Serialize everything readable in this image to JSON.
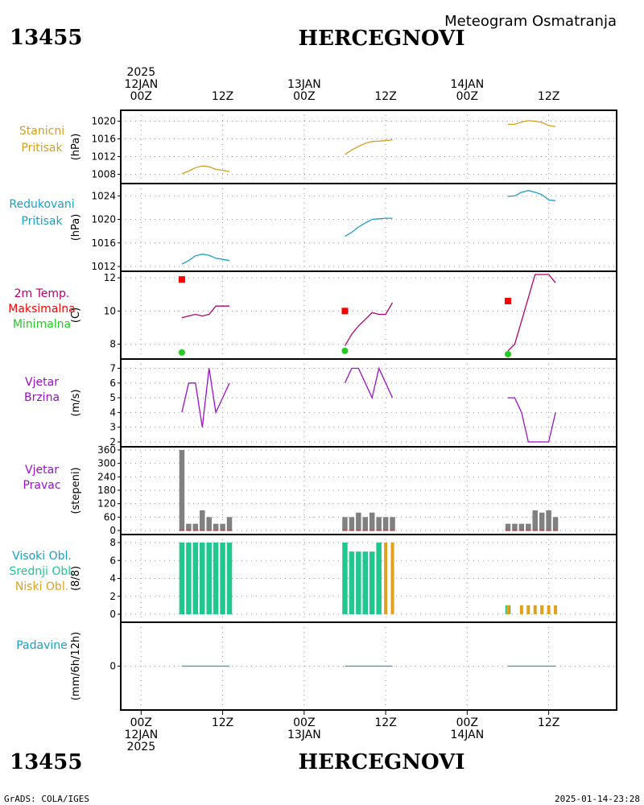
{
  "header": {
    "station_id": "13455",
    "station_name": "HERCEGNOVI",
    "subtitle": "Meteogram Osmatranja"
  },
  "footer": {
    "left": "GrADS: COLA/IGES",
    "right": "2025-01-14-23:28"
  },
  "time_axis": {
    "top_labels": [
      {
        "hour": 0,
        "lines": [
          "2025",
          "12JAN",
          "00Z"
        ]
      },
      {
        "hour": 12,
        "lines": [
          "12Z"
        ]
      },
      {
        "hour": 24,
        "lines": [
          "13JAN",
          "00Z"
        ]
      },
      {
        "hour": 36,
        "lines": [
          "12Z"
        ]
      },
      {
        "hour": 48,
        "lines": [
          "14JAN",
          "00Z"
        ]
      },
      {
        "hour": 60,
        "lines": [
          "12Z"
        ]
      }
    ],
    "bottom_labels": [
      {
        "hour": 0,
        "lines": [
          "00Z",
          "12JAN",
          "2025"
        ]
      },
      {
        "hour": 12,
        "lines": [
          "12Z"
        ]
      },
      {
        "hour": 24,
        "lines": [
          "00Z",
          "13JAN"
        ]
      },
      {
        "hour": 36,
        "lines": [
          "12Z"
        ]
      },
      {
        "hour": 48,
        "lines": [
          "00Z",
          "14JAN"
        ]
      },
      {
        "hour": 60,
        "lines": [
          "12Z"
        ]
      }
    ],
    "range_hours": [
      -3,
      70
    ]
  },
  "colors": {
    "station_pressure": "#d4a020",
    "reduced_pressure": "#1aa0c8",
    "temp_line": "#b4006e",
    "temp_max": "#ff0000",
    "temp_min": "#22cc22",
    "wind": "#9b10c8",
    "wind_dir": "#808080",
    "cloud_high": "#1aa0c8",
    "cloud_mid": "#20c890",
    "cloud_low": "#e0a020",
    "precip": "#1aa0c8"
  },
  "chart_data": [
    {
      "id": "station_pressure",
      "type": "line",
      "labels": [
        "Stanicni",
        "Pritisak"
      ],
      "ylabel": "(hPa)",
      "ylim": [
        1007,
        1021
      ],
      "yticks": [
        1008,
        1012,
        1016,
        1020
      ],
      "series": [
        {
          "x": [
            6,
            7,
            8,
            9,
            10,
            11,
            12,
            13
          ],
          "y": [
            1008.1,
            1008.7,
            1009.5,
            1009.9,
            1009.7,
            1009.1,
            1008.9,
            1008.6
          ]
        },
        {
          "x": [
            30,
            31,
            32,
            33,
            34,
            35,
            36,
            37
          ],
          "y": [
            1012.5,
            1013.5,
            1014.3,
            1015.0,
            1015.4,
            1015.5,
            1015.6,
            1015.8
          ]
        },
        {
          "x": [
            54,
            55,
            56,
            57,
            58,
            59,
            60,
            61
          ],
          "y": [
            1019.3,
            1019.3,
            1019.8,
            1020.1,
            1020.0,
            1019.7,
            1019.0,
            1018.8
          ]
        }
      ]
    },
    {
      "id": "reduced_pressure",
      "type": "line",
      "labels": [
        "Redukovani",
        "Pritisak"
      ],
      "ylabel": "(hPa)",
      "ylim": [
        1012,
        1025
      ],
      "yticks": [
        1012,
        1016,
        1020,
        1024
      ],
      "series": [
        {
          "x": [
            6,
            7,
            8,
            9,
            10,
            11,
            12,
            13
          ],
          "y": [
            1012.4,
            1013.0,
            1013.8,
            1014.1,
            1013.9,
            1013.4,
            1013.2,
            1013.0
          ]
        },
        {
          "x": [
            30,
            31,
            32,
            33,
            34,
            35,
            36,
            37
          ],
          "y": [
            1017.1,
            1017.8,
            1018.7,
            1019.4,
            1020.0,
            1020.1,
            1020.2,
            1020.2
          ]
        },
        {
          "x": [
            54,
            55,
            56,
            57,
            58,
            59,
            60,
            61
          ],
          "y": [
            1023.9,
            1024.0,
            1024.6,
            1024.9,
            1024.6,
            1024.2,
            1023.3,
            1023.2
          ]
        }
      ]
    },
    {
      "id": "temperature",
      "type": "line",
      "labels": [
        "2m Temp.",
        "Maksimalna",
        "Minimalna"
      ],
      "ylabel": "(C)",
      "ylim": [
        7.3,
        12.2
      ],
      "yticks": [
        8,
        10,
        12
      ],
      "series": [
        {
          "x": [
            6,
            7,
            8,
            9,
            10,
            11,
            12,
            13
          ],
          "y": [
            9.6,
            9.7,
            9.8,
            9.7,
            9.8,
            10.3,
            10.3,
            10.3
          ]
        },
        {
          "x": [
            30,
            31,
            32,
            33,
            34,
            35,
            36,
            37
          ],
          "y": [
            7.9,
            8.6,
            9.1,
            9.5,
            9.9,
            9.8,
            9.8,
            10.5
          ]
        },
        {
          "x": [
            54,
            55,
            56,
            57,
            58,
            59,
            60,
            61
          ],
          "y": [
            7.6,
            8.0,
            9.4,
            10.8,
            12.2,
            12.2,
            12.2,
            11.7
          ]
        }
      ],
      "max_markers": [
        {
          "x": 6,
          "y": 11.9
        },
        {
          "x": 30,
          "y": 10.0
        },
        {
          "x": 54,
          "y": 10.6
        }
      ],
      "min_markers": [
        {
          "x": 6,
          "y": 7.5
        },
        {
          "x": 30,
          "y": 7.6
        },
        {
          "x": 54,
          "y": 7.4
        }
      ]
    },
    {
      "id": "wind_speed",
      "type": "line",
      "labels": [
        "Vjetar",
        "Brzina"
      ],
      "ylabel": "(m/s)",
      "ylim": [
        2,
        7.3
      ],
      "yticks": [
        2,
        3,
        4,
        5,
        6,
        7
      ],
      "series": [
        {
          "x": [
            6,
            7,
            8,
            9,
            10,
            11,
            12,
            13
          ],
          "y": [
            4,
            6,
            6,
            3,
            7,
            4,
            5,
            6
          ]
        },
        {
          "x": [
            30,
            31,
            32,
            33,
            34,
            35,
            36,
            37
          ],
          "y": [
            6,
            7,
            7,
            6,
            5,
            7,
            6,
            5
          ]
        },
        {
          "x": [
            54,
            55,
            56,
            57,
            58,
            59,
            60,
            61
          ],
          "y": [
            5,
            5,
            4,
            2,
            2,
            2,
            2,
            4
          ]
        }
      ]
    },
    {
      "id": "wind_direction",
      "type": "bar",
      "labels": [
        "Vjetar",
        "Pravac"
      ],
      "ylabel": "(stepeni)",
      "ylim": [
        0,
        360
      ],
      "yticks": [
        0,
        60,
        120,
        180,
        240,
        300,
        360
      ],
      "x": [
        6,
        7,
        8,
        9,
        10,
        11,
        12,
        13,
        30,
        31,
        32,
        33,
        34,
        35,
        36,
        37,
        54,
        55,
        56,
        57,
        58,
        59,
        60,
        61
      ],
      "values": [
        360,
        30,
        30,
        90,
        60,
        30,
        30,
        60,
        60,
        60,
        80,
        60,
        80,
        60,
        60,
        60,
        30,
        30,
        30,
        30,
        90,
        80,
        90,
        60
      ]
    },
    {
      "id": "clouds",
      "type": "bar",
      "labels": [
        "Visoki Obl.",
        "Srednji Obl.",
        "Niski Obl."
      ],
      "ylabel": "(8/8)",
      "ylim": [
        0,
        8
      ],
      "yticks": [
        0,
        2,
        4,
        6,
        8
      ],
      "x": [
        6,
        7,
        8,
        9,
        10,
        11,
        12,
        13,
        30,
        31,
        32,
        33,
        34,
        35,
        36,
        37,
        54,
        55,
        56,
        57,
        58,
        59,
        60,
        61
      ],
      "series": [
        {
          "name": "Srednji Obl.",
          "values": [
            8,
            8,
            8,
            8,
            8,
            8,
            8,
            8,
            8,
            7,
            7,
            7,
            7,
            8,
            0,
            0,
            1,
            0,
            0,
            0,
            0,
            0,
            0,
            0
          ]
        },
        {
          "name": "Niski Obl.",
          "values": [
            0,
            0,
            0,
            0,
            0,
            0,
            0,
            0,
            0,
            0,
            0,
            0,
            0,
            0,
            8,
            8,
            1,
            0,
            1,
            1,
            1,
            1,
            1,
            1
          ]
        }
      ]
    },
    {
      "id": "precipitation",
      "type": "line",
      "labels": [
        "Padavine"
      ],
      "ylabel": "(mm/6h/12h)",
      "ylim": [
        -1,
        1
      ],
      "yticks": [
        0
      ],
      "series": [
        {
          "x": [
            6,
            7,
            8,
            9,
            10,
            11,
            12,
            13
          ],
          "y": [
            0,
            0,
            0,
            0,
            0,
            0,
            0,
            0
          ]
        },
        {
          "x": [
            30,
            31,
            32,
            33,
            34,
            35,
            36,
            37
          ],
          "y": [
            0,
            0,
            0,
            0,
            0,
            0,
            0,
            0
          ]
        },
        {
          "x": [
            54,
            55,
            56,
            57,
            58,
            59,
            60,
            61
          ],
          "y": [
            0,
            0,
            0,
            0,
            0,
            0,
            0,
            0
          ]
        }
      ]
    }
  ]
}
